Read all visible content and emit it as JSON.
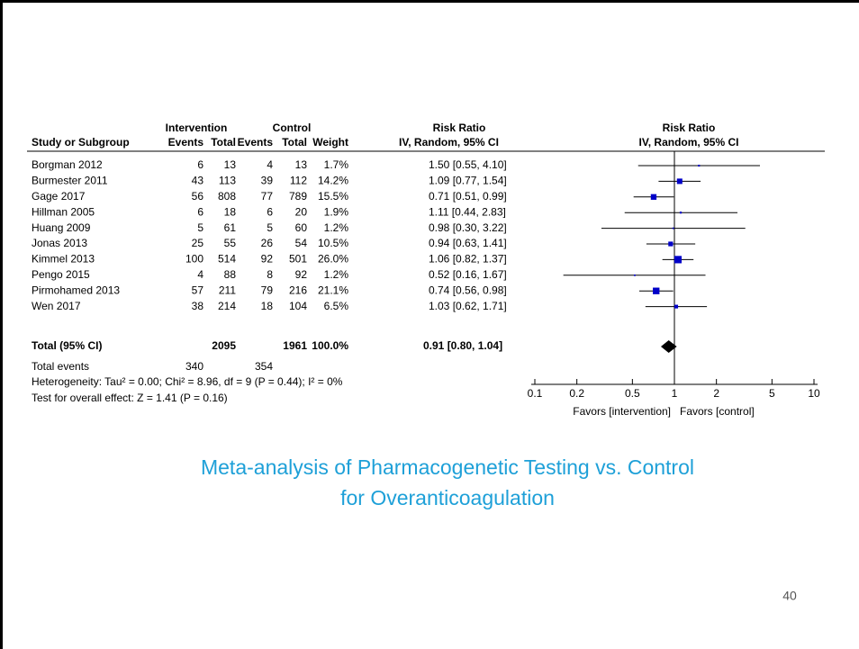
{
  "table": {
    "group_headers": [
      "Intervention",
      "Control",
      "Risk Ratio"
    ],
    "columns": [
      "Study or Subgroup",
      "Events",
      "Total",
      "Events",
      "Total",
      "Weight",
      "IV, Random, 95% CI"
    ],
    "rows": [
      {
        "study": "Borgman 2012",
        "ie": 6,
        "it": 13,
        "ce": 4,
        "ct": 13,
        "weight": 1.7,
        "weight_label": "1.7%",
        "ci_label": "1.50 [0.55, 4.10]",
        "rr": 1.5,
        "lo": 0.55,
        "hi": 4.1
      },
      {
        "study": "Burmester 2011",
        "ie": 43,
        "it": 113,
        "ce": 39,
        "ct": 112,
        "weight": 14.2,
        "weight_label": "14.2%",
        "ci_label": "1.09 [0.77, 1.54]",
        "rr": 1.09,
        "lo": 0.77,
        "hi": 1.54
      },
      {
        "study": "Gage 2017",
        "ie": 56,
        "it": 808,
        "ce": 77,
        "ct": 789,
        "weight": 15.5,
        "weight_label": "15.5%",
        "ci_label": "0.71 [0.51, 0.99]",
        "rr": 0.71,
        "lo": 0.51,
        "hi": 0.99
      },
      {
        "study": "Hillman 2005",
        "ie": 6,
        "it": 18,
        "ce": 6,
        "ct": 20,
        "weight": 1.9,
        "weight_label": "1.9%",
        "ci_label": "1.11 [0.44, 2.83]",
        "rr": 1.11,
        "lo": 0.44,
        "hi": 2.83
      },
      {
        "study": "Huang 2009",
        "ie": 5,
        "it": 61,
        "ce": 5,
        "ct": 60,
        "weight": 1.2,
        "weight_label": "1.2%",
        "ci_label": "0.98 [0.30, 3.22]",
        "rr": 0.98,
        "lo": 0.3,
        "hi": 3.22
      },
      {
        "study": "Jonas 2013",
        "ie": 25,
        "it": 55,
        "ce": 26,
        "ct": 54,
        "weight": 10.5,
        "weight_label": "10.5%",
        "ci_label": "0.94 [0.63, 1.41]",
        "rr": 0.94,
        "lo": 0.63,
        "hi": 1.41
      },
      {
        "study": "Kimmel 2013",
        "ie": 100,
        "it": 514,
        "ce": 92,
        "ct": 501,
        "weight": 26.0,
        "weight_label": "26.0%",
        "ci_label": "1.06 [0.82, 1.37]",
        "rr": 1.06,
        "lo": 0.82,
        "hi": 1.37
      },
      {
        "study": "Pengo 2015",
        "ie": 4,
        "it": 88,
        "ce": 8,
        "ct": 92,
        "weight": 1.2,
        "weight_label": "1.2%",
        "ci_label": "0.52 [0.16, 1.67]",
        "rr": 0.52,
        "lo": 0.16,
        "hi": 1.67
      },
      {
        "study": "Pirmohamed 2013",
        "ie": 57,
        "it": 211,
        "ce": 79,
        "ct": 216,
        "weight": 21.1,
        "weight_label": "21.1%",
        "ci_label": "0.74 [0.56, 0.98]",
        "rr": 0.74,
        "lo": 0.56,
        "hi": 0.98
      },
      {
        "study": "Wen 2017",
        "ie": 38,
        "it": 214,
        "ce": 18,
        "ct": 104,
        "weight": 6.5,
        "weight_label": "6.5%",
        "ci_label": "1.03 [0.62, 1.71]",
        "rr": 1.03,
        "lo": 0.62,
        "hi": 1.71
      }
    ],
    "total": {
      "label": "Total (95% CI)",
      "it": 2095,
      "ct": 1961,
      "weight_label": "100.0%",
      "ci_label": "0.91 [0.80, 1.04]",
      "rr": 0.91,
      "lo": 0.8,
      "hi": 1.04
    },
    "total_events": {
      "label": "Total events",
      "ie": 340,
      "ce": 354
    },
    "heterogeneity": "Heterogeneity: Tau² = 0.00; Chi² = 8.96, df = 9 (P = 0.44); I² = 0%",
    "overall_effect": "Test for overall effect: Z = 1.41 (P = 0.16)"
  },
  "plot": {
    "title": "Risk Ratio",
    "subtitle": "IV, Random, 95% CI",
    "log": true,
    "xlim": [
      0.1,
      10
    ],
    "xticks": [
      0.1,
      0.2,
      0.5,
      1,
      2,
      5,
      10
    ],
    "color": "#0000c8",
    "favors_left": "Favors [intervention]",
    "favors_right": "Favors [control]"
  },
  "caption": [
    "Meta-analysis of Pharmacogenetic Testing vs. Control",
    "for Overanticoagulation"
  ],
  "page_number": "40"
}
